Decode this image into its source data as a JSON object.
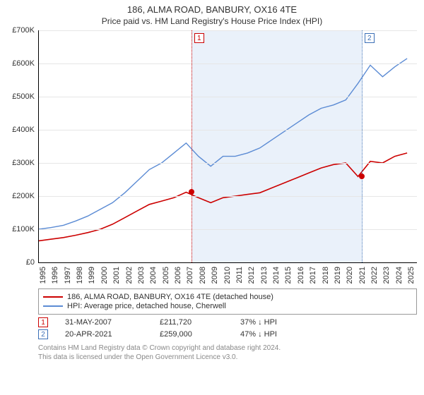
{
  "title_line1": "186, ALMA ROAD, BANBURY, OX16 4TE",
  "title_line2": "Price paid vs. HM Land Registry's House Price Index (HPI)",
  "chart": {
    "type": "line",
    "x_years": [
      1995,
      1996,
      1997,
      1998,
      1999,
      2000,
      2001,
      2002,
      2003,
      2004,
      2005,
      2006,
      2007,
      2008,
      2009,
      2010,
      2011,
      2012,
      2013,
      2014,
      2015,
      2016,
      2017,
      2018,
      2019,
      2020,
      2021,
      2022,
      2023,
      2024,
      2025
    ],
    "x_min": 1995,
    "x_max": 2025.8,
    "ylim": [
      0,
      700000
    ],
    "ytick_step": 100000,
    "y_ticks": [
      "£0",
      "£100K",
      "£200K",
      "£300K",
      "£400K",
      "£500K",
      "£600K",
      "£700K"
    ],
    "grid_color": "#e6e6e6",
    "axis_color": "#000000",
    "background_color": "#ffffff",
    "shade_color": "#eaf1fa",
    "shade_from_year": 2007.42,
    "shade_to_year": 2021.3,
    "markers": [
      {
        "n": "1",
        "year": 2007.42,
        "color": "#cc0000"
      },
      {
        "n": "2",
        "year": 2021.3,
        "color": "#3b6fb6"
      }
    ],
    "marker_dots": [
      {
        "year": 2007.42,
        "value": 211720,
        "color": "#cc0000"
      },
      {
        "year": 2021.3,
        "value": 259000,
        "color": "#cc0000"
      }
    ],
    "series": [
      {
        "name": "price_paid",
        "color": "#cc0000",
        "width": 1.6,
        "values": [
          65000,
          70000,
          75000,
          82000,
          90000,
          100000,
          115000,
          135000,
          155000,
          175000,
          185000,
          195000,
          211720,
          195000,
          180000,
          195000,
          200000,
          205000,
          210000,
          225000,
          240000,
          255000,
          270000,
          285000,
          295000,
          300000,
          259000,
          305000,
          300000,
          320000,
          330000
        ]
      },
      {
        "name": "hpi",
        "color": "#5b8bd4",
        "width": 1.4,
        "values": [
          100000,
          105000,
          112000,
          125000,
          140000,
          160000,
          180000,
          210000,
          245000,
          280000,
          300000,
          330000,
          360000,
          320000,
          290000,
          320000,
          320000,
          330000,
          345000,
          370000,
          395000,
          420000,
          445000,
          465000,
          475000,
          490000,
          540000,
          595000,
          560000,
          590000,
          615000
        ]
      }
    ]
  },
  "legend": {
    "items": [
      {
        "color": "#cc0000",
        "label": "186, ALMA ROAD, BANBURY, OX16 4TE (detached house)"
      },
      {
        "color": "#5b8bd4",
        "label": "HPI: Average price, detached house, Cherwell"
      }
    ]
  },
  "sales": [
    {
      "n": "1",
      "color": "#cc0000",
      "date": "31-MAY-2007",
      "price": "£211,720",
      "delta": "37% ↓ HPI"
    },
    {
      "n": "2",
      "color": "#3b6fb6",
      "date": "20-APR-2021",
      "price": "£259,000",
      "delta": "47% ↓ HPI"
    }
  ],
  "attribution": {
    "line1": "Contains HM Land Registry data © Crown copyright and database right 2024.",
    "line2": "This data is licensed under the Open Government Licence v3.0."
  }
}
